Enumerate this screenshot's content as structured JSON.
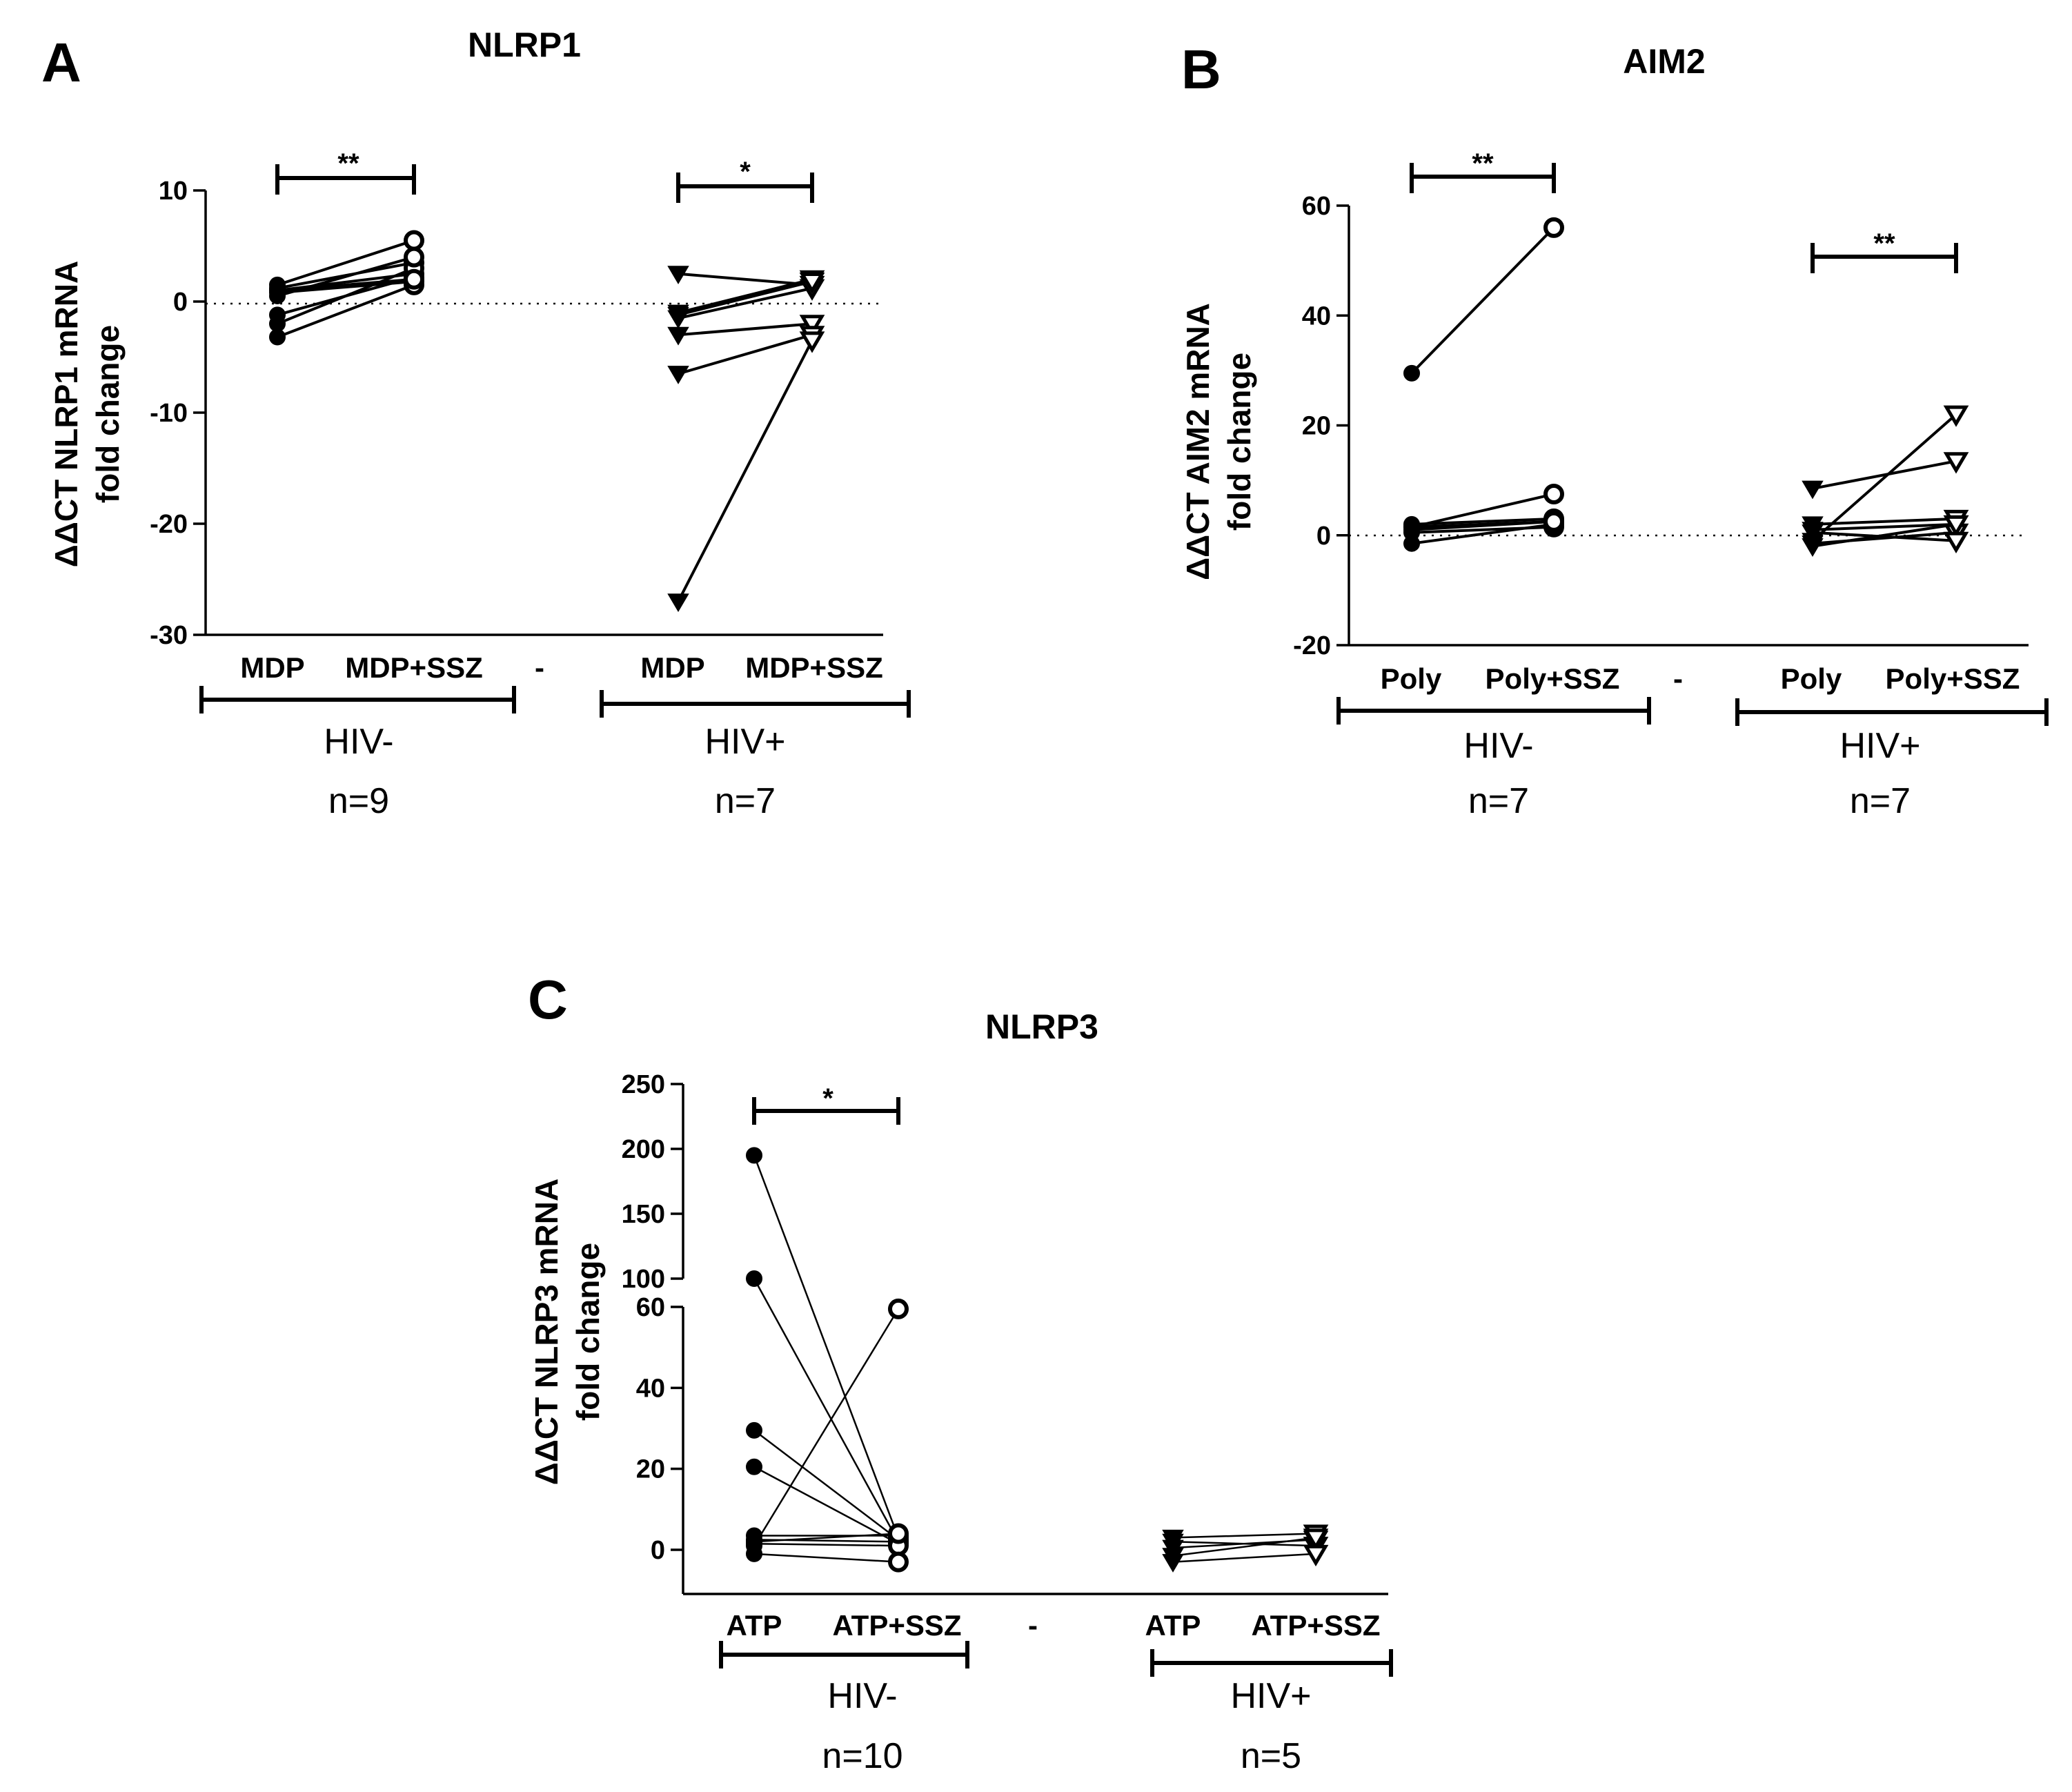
{
  "chart_data": [
    {
      "panel": "A",
      "type": "scatter",
      "title": "NLRP1",
      "ylabel_line1": "ΔΔCT NLRP1 mRNA",
      "ylabel_line2": "fold change",
      "ylim": [
        -30,
        10
      ],
      "yticks": [
        10,
        0,
        -10,
        -20,
        -30
      ],
      "categories": [
        "MDP",
        "MDP+SSZ",
        "MDP",
        "MDP+SSZ"
      ],
      "separator": "-",
      "groups": [
        {
          "name": "HIV-",
          "n": "n=9",
          "marker": "circle",
          "significance": "**",
          "pairs": [
            [
              1.5,
              5.5
            ],
            [
              1.2,
              3.5
            ],
            [
              1.0,
              2.5
            ],
            [
              0.8,
              1.8
            ],
            [
              -1.2,
              2.2
            ],
            [
              -2.0,
              3.0
            ],
            [
              -3.2,
              1.5
            ],
            [
              1.0,
              2.0
            ],
            [
              0.5,
              4.0
            ]
          ]
        },
        {
          "name": "HIV+",
          "n": "n=7",
          "marker": "triangle-down",
          "significance": "*",
          "pairs": [
            [
              2.5,
              1.5
            ],
            [
              -1.0,
              2.0
            ],
            [
              -1.5,
              1.2
            ],
            [
              -3.0,
              -2.0
            ],
            [
              -6.5,
              -3.0
            ],
            [
              -27.0,
              -3.5
            ],
            [
              -1.2,
              1.8
            ]
          ]
        }
      ]
    },
    {
      "panel": "B",
      "type": "scatter",
      "title": "AIM2",
      "ylabel_line1": "ΔΔCT AIM2 mRNA",
      "ylabel_line2": "fold change",
      "ylim": [
        -20,
        60
      ],
      "yticks": [
        60,
        40,
        20,
        0,
        -20
      ],
      "categories": [
        "Poly",
        "Poly+SSZ",
        "Poly",
        "Poly+SSZ"
      ],
      "separator": "-",
      "groups": [
        {
          "name": "HIV-",
          "n": "n=7",
          "marker": "circle",
          "significance": "**",
          "pairs": [
            [
              29.5,
              56.0
            ],
            [
              1.5,
              7.5
            ],
            [
              2.0,
              3.0
            ],
            [
              1.5,
              2.5
            ],
            [
              0.5,
              1.5
            ],
            [
              -1.5,
              2.0
            ],
            [
              1.0,
              2.5
            ]
          ]
        },
        {
          "name": "HIV+",
          "n": "n=7",
          "marker": "triangle-down",
          "significance": "**",
          "pairs": [
            [
              8.5,
              13.5
            ],
            [
              -1.0,
              22.0
            ],
            [
              2.0,
              3.0
            ],
            [
              1.0,
              2.0
            ],
            [
              -1.5,
              0.5
            ],
            [
              -2.0,
              2.0
            ],
            [
              0.5,
              -1.0
            ]
          ]
        }
      ]
    },
    {
      "panel": "C",
      "type": "scatter",
      "title": "NLRP3",
      "ylabel_line1": "ΔΔCT NLRP3 mRNA",
      "ylabel_line2": "fold change",
      "ylim": [
        -10,
        250
      ],
      "axis_break": [
        60,
        100
      ],
      "yticks": [
        250,
        200,
        150,
        100,
        60,
        40,
        20,
        0
      ],
      "categories": [
        "ATP",
        "ATP+SSZ",
        "ATP",
        "ATP+SSZ"
      ],
      "separator": "-",
      "groups": [
        {
          "name": "HIV-",
          "n": "n=10",
          "marker": "circle",
          "significance": "*",
          "pairs": [
            [
              195.0,
              3.0
            ],
            [
              100.0,
              2.0
            ],
            [
              29.5,
              2.5
            ],
            [
              20.5,
              1.5
            ],
            [
              3.5,
              3.5
            ],
            [
              2.5,
              2.0
            ],
            [
              1.5,
              1.0
            ],
            [
              -1.0,
              -3.0
            ],
            [
              2.0,
              4.0
            ],
            [
              1.0,
              59.5
            ]
          ]
        },
        {
          "name": "HIV+",
          "n": "n=5",
          "marker": "triangle-down",
          "significance": "",
          "pairs": [
            [
              3.0,
              4.0
            ],
            [
              2.0,
              1.0
            ],
            [
              0.5,
              2.5
            ],
            [
              -1.5,
              3.0
            ],
            [
              -3.0,
              -1.0
            ]
          ]
        }
      ]
    }
  ]
}
